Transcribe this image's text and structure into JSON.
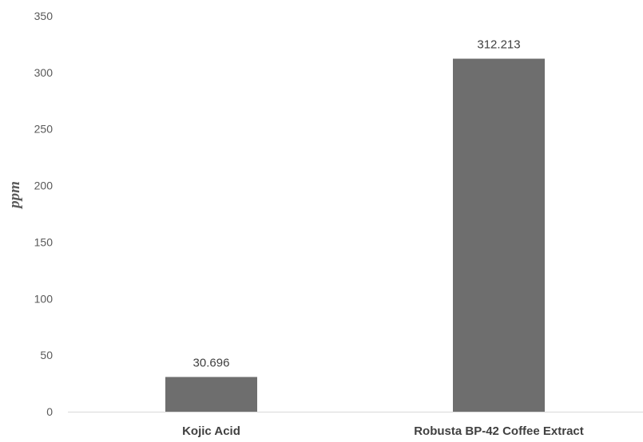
{
  "chart_data": {
    "type": "bar",
    "title": "",
    "xlabel": "",
    "ylabel": "ppm",
    "categories": [
      "Kojic Acid",
      "Robusta BP-42 Coffee Extract"
    ],
    "values": [
      30.696,
      312.213
    ],
    "data_labels": [
      "30.696",
      "312.213"
    ],
    "ylim": [
      0,
      350
    ],
    "yticks": [
      0,
      50,
      100,
      150,
      200,
      250,
      300,
      350
    ],
    "grid": false,
    "legend": "none",
    "bar_color": "#6e6e6e",
    "axis_color": "#d9d9d9"
  }
}
